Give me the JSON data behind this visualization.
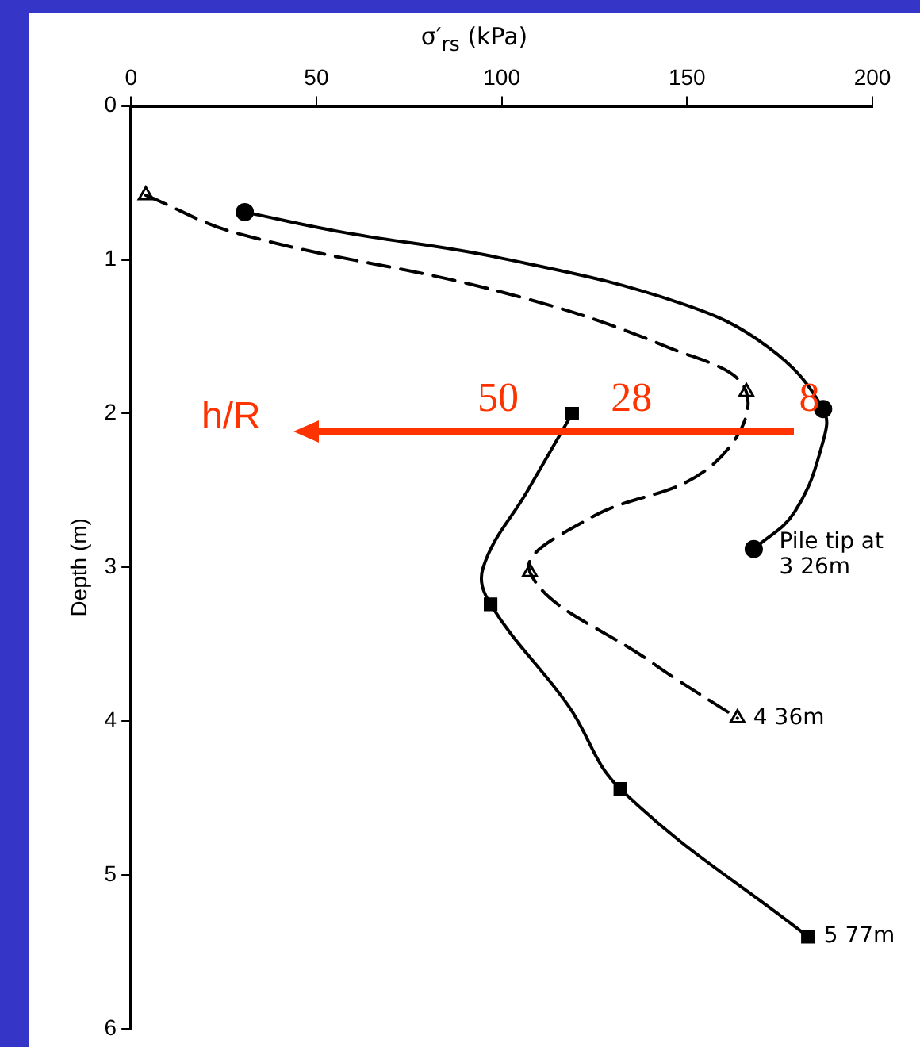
{
  "chart_data": {
    "type": "line",
    "xlabel": "σ′$_{rs}$ (kPa)",
    "ylabel": "Depth (m)",
    "xlim": [
      0,
      200
    ],
    "xticks": [
      0,
      50,
      100,
      150,
      200
    ],
    "ylim": [
      6,
      0
    ],
    "yticks": [
      0,
      1,
      2,
      3,
      4,
      5,
      6
    ],
    "grid": false,
    "legend": false,
    "series": [
      {
        "color": "#000000",
        "line_style": "solid",
        "marker": "none",
        "x": [
          30.7,
          57,
          100,
          148,
          172,
          186.7,
          186.7,
          179,
          168
        ],
        "values": [
          0.69,
          0.82,
          0.99,
          1.28,
          1.57,
          1.97,
          2.18,
          2.64,
          2.88
        ]
      },
      {
        "type": "scatter",
        "name": "Pile tip at 3 26m",
        "color": "#000000",
        "marker": "circle",
        "x": [
          30.7,
          186.7,
          168
        ],
        "values": [
          0.69,
          1.97,
          2.88
        ]
      },
      {
        "color": "#000000",
        "line_style": "dashed",
        "marker": "none",
        "x": [
          4,
          29,
          100,
          145,
          166,
          156,
          123,
          107.6,
          140,
          163.6
        ],
        "values": [
          0.58,
          0.83,
          1.21,
          1.57,
          1.86,
          2.35,
          2.69,
          3.03,
          3.61,
          3.98
        ]
      },
      {
        "type": "scatter",
        "name": "4 36m",
        "color": "#000000",
        "marker": "triangle",
        "x": [
          4,
          166,
          107.6,
          163.6
        ],
        "values": [
          0.58,
          1.86,
          3.03,
          3.98
        ]
      },
      {
        "color": "#000000",
        "line_style": "solid",
        "marker": "none",
        "x": [
          119,
          107,
          95,
          97,
          118,
          132,
          182.6
        ],
        "values": [
          2.0,
          2.5,
          3.0,
          3.24,
          3.9,
          4.44,
          5.4
        ]
      },
      {
        "type": "scatter",
        "name": "5 77m",
        "color": "#000000",
        "marker": "square",
        "x": [
          119,
          97,
          132,
          182.6
        ],
        "values": [
          2.0,
          3.24,
          4.44,
          5.4
        ]
      }
    ],
    "annotations": [
      "h/R",
      "50",
      "28",
      "8"
    ]
  }
}
